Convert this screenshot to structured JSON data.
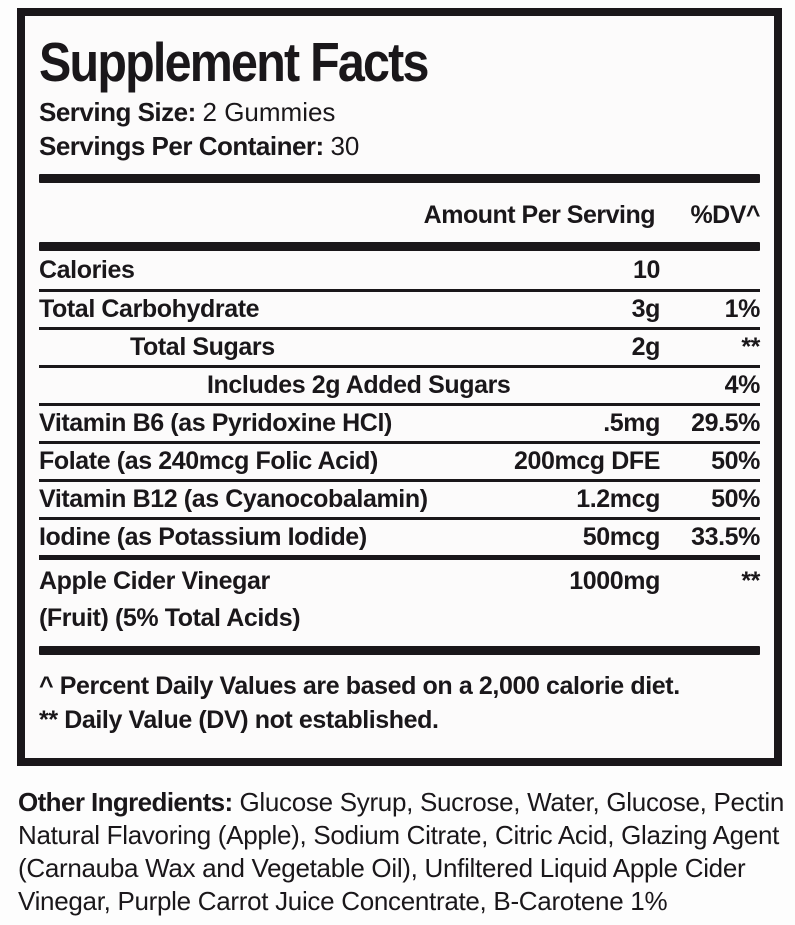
{
  "label": {
    "title": "Supplement Facts",
    "serving_size_label": "Serving Size:",
    "serving_size_value": "2 Gummies",
    "servings_per_container_label": "Servings Per Container:",
    "servings_per_container_value": "30",
    "header": {
      "amount": "Amount Per Serving",
      "dv": "%DV^"
    },
    "rows": [
      {
        "name": "Calories",
        "amount": "10",
        "dv": ""
      },
      {
        "name": "Total Carbohydrate",
        "amount": "3g",
        "dv": "1%"
      },
      {
        "name": "Total Sugars",
        "amount": "2g",
        "dv": "**"
      },
      {
        "name": "Includes 2g Added Sugars",
        "amount": "",
        "dv": "4%"
      },
      {
        "name": "Vitamin B6 (as Pyridoxine HCl)",
        "amount": ".5mg",
        "dv": "29.5%"
      },
      {
        "name": "Folate (as 240mcg Folic Acid)",
        "amount": "200mcg DFE",
        "dv": "50%"
      },
      {
        "name": "Vitamin B12 (as Cyanocobalamin)",
        "amount": "1.2mcg",
        "dv": "50%"
      },
      {
        "name": "Iodine (as Potassium Iodide)",
        "amount": "50mcg",
        "dv": "33.5%"
      },
      {
        "name": "Apple Cider Vinegar",
        "name_line2": "(Fruit) (5% Total Acids)",
        "amount": "1000mg",
        "dv": "**"
      }
    ],
    "footnotes": [
      "^ Percent Daily Values are based on a 2,000 calorie diet.",
      "** Daily Value (DV) not established."
    ]
  },
  "other_ingredients": {
    "label": "Other Ingredients:",
    "full_text": "Glucose Syrup, Sucrose, Water, Glucose, Pectin Natural Flavoring (Apple), Sodium Citrate, Citric Acid, Glazing Agent (Carnauba Wax and Vegetable Oil), Unfiltered Liquid Apple Cider Vinegar, Purple Carrot Juice Concentrate, B-Carotene 1%",
    "lines": [
      "Glucose Syrup, Sucrose, Water, Glucose, Pectin",
      "Natural Flavoring (Apple), Sodium Citrate, Citric Acid, Glazing Agent",
      "(Carnauba Wax and Vegetable Oil), Unfiltered Liquid Apple Cider",
      "Vinegar, Purple Carrot Juice Concentrate, B-Carotene 1%"
    ]
  },
  "colors": {
    "text": "#1a171a",
    "border": "#1a171a",
    "panel_background": "#fcfbfb",
    "page_background": "#fdfdfd"
  }
}
